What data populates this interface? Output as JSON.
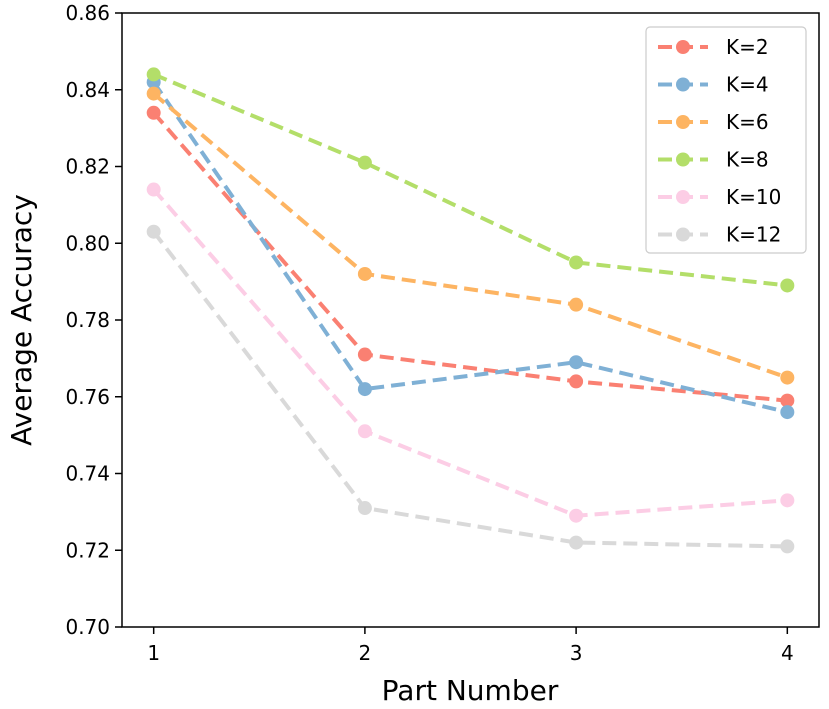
{
  "chart_data": {
    "type": "line",
    "title": "",
    "xlabel": "Part Number",
    "ylabel": "Average Accuracy",
    "x": [
      1,
      2,
      3,
      4
    ],
    "xticks": [
      "1",
      "2",
      "3",
      "4"
    ],
    "yticks": [
      "0.70",
      "0.72",
      "0.74",
      "0.76",
      "0.78",
      "0.80",
      "0.82",
      "0.84",
      "0.86"
    ],
    "ylim": [
      0.7,
      0.86
    ],
    "xlim": [
      0.85,
      4.15
    ],
    "grid": false,
    "legend_position": "top-right",
    "line_style": "dashed",
    "series": [
      {
        "name": "K=2",
        "color": "#fa8072",
        "values": [
          0.834,
          0.771,
          0.764,
          0.759
        ]
      },
      {
        "name": "K=4",
        "color": "#7fb0d5",
        "values": [
          0.842,
          0.762,
          0.769,
          0.756
        ]
      },
      {
        "name": "K=6",
        "color": "#fdb462",
        "values": [
          0.839,
          0.792,
          0.784,
          0.765
        ]
      },
      {
        "name": "K=8",
        "color": "#b3de69",
        "values": [
          0.844,
          0.821,
          0.795,
          0.789
        ]
      },
      {
        "name": "K=10",
        "color": "#fccde5",
        "values": [
          0.814,
          0.751,
          0.729,
          0.733
        ]
      },
      {
        "name": "K=12",
        "color": "#d9d9d9",
        "values": [
          0.803,
          0.731,
          0.722,
          0.721
        ]
      }
    ]
  }
}
